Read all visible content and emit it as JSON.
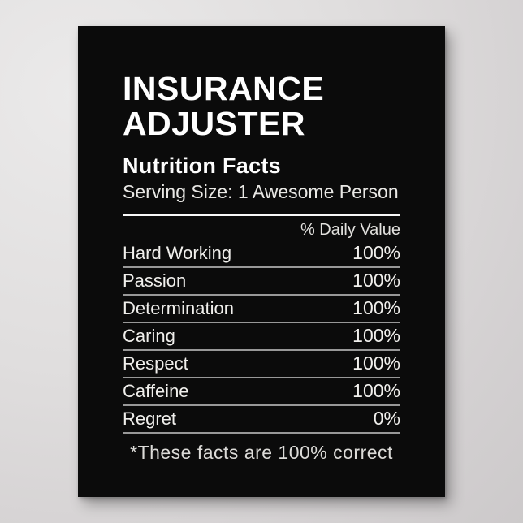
{
  "poster": {
    "title_line1": "INSURANCE",
    "title_line2": "ADJUSTER",
    "heading": "Nutrition Facts",
    "serving_size": "Serving Size: 1 Awesome Person",
    "daily_value_header": "% Daily Value",
    "rows": [
      {
        "label": "Hard Working",
        "value": "100%"
      },
      {
        "label": "Passion",
        "value": "100%"
      },
      {
        "label": "Determination",
        "value": "100%"
      },
      {
        "label": "Caring",
        "value": "100%"
      },
      {
        "label": "Respect",
        "value": "100%"
      },
      {
        "label": "Caffeine",
        "value": "100%"
      },
      {
        "label": "Regret",
        "value": "0%"
      }
    ],
    "footnote": "*These facts are 100% correct",
    "colors": {
      "wall_light": "#ebeaea",
      "wall_dark": "#c9c6c7",
      "poster_background": "#0b0b0b",
      "text_primary": "#ffffff",
      "text_secondary": "#e9e8e5",
      "divider_thick": "#f8f8f8",
      "divider_thin": "#989898"
    }
  }
}
